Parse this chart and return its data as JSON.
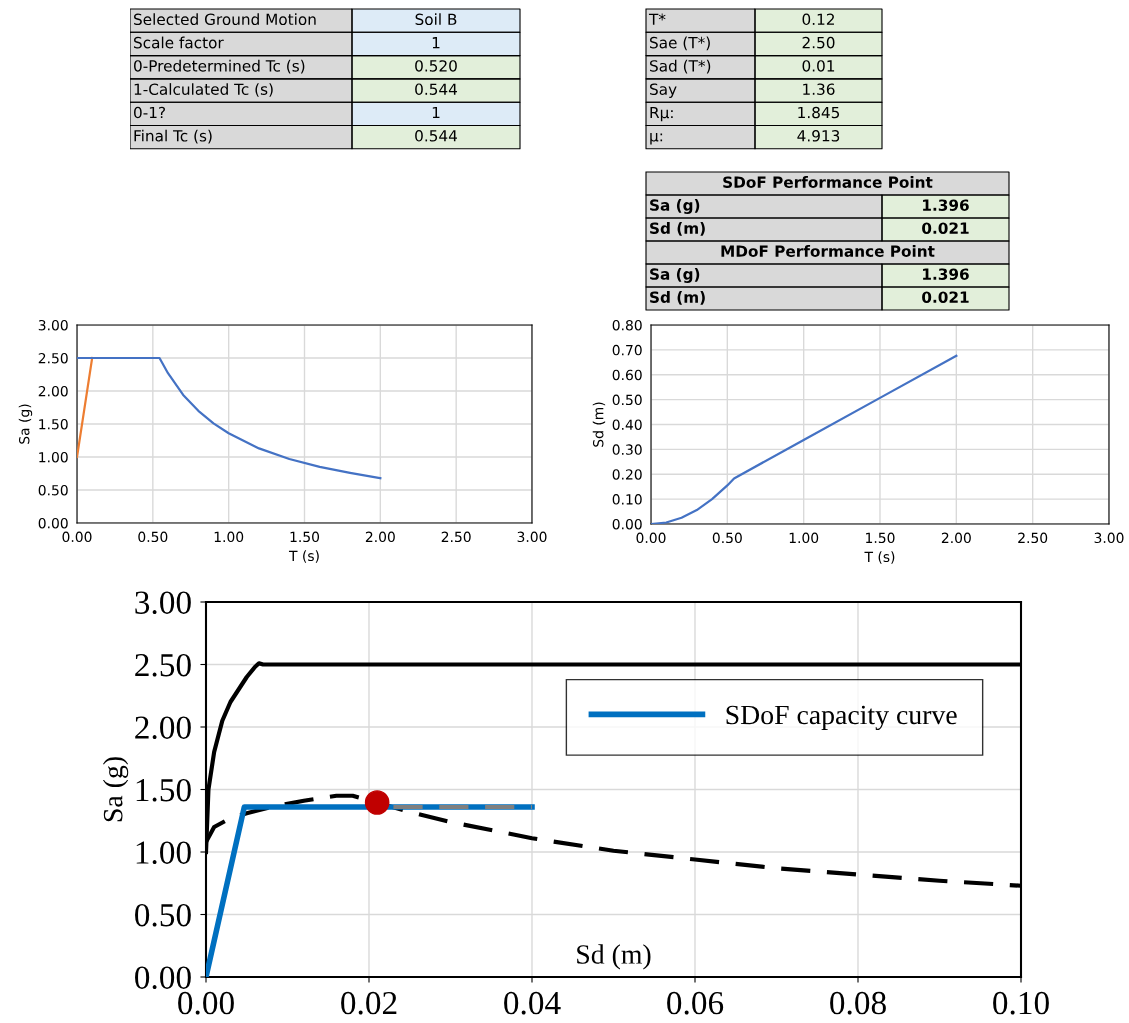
{
  "chart_data": [
    {
      "type": "other",
      "annotations": [
        "Selected Ground Motion",
        "Soil B",
        "Scale factor",
        "1",
        "0-Predetermined Tc (s)",
        "0.520",
        "1-Calculated Tc (s)",
        "0.544",
        "0-1?",
        "1",
        "Final Tc (s)",
        "0.544",
        "T*",
        "0.12",
        "Sae (T*)",
        "2.50",
        "Sad (T*)",
        "0.01",
        "Say",
        "1.36",
        "Rμ:",
        "1.845",
        "μ:",
        "4.913",
        "SDoF Performance Point",
        "Sa (g)",
        "1.396",
        "Sd (m)",
        "0.021",
        "MDoF Performance Point",
        "Sa (g)",
        "1.396",
        "Sd (m)",
        "0.021"
      ],
      "colors": [
        "#d9d9d9",
        "#ddebf7",
        "#d9d9d9",
        "#ddebf7",
        "#d9d9d9",
        "#e2efda",
        "#d9d9d9",
        "#e2efda",
        "#d9d9d9",
        "#ddebf7",
        "#d9d9d9",
        "#e2efda",
        "#d9d9d9",
        "#e2efda",
        "#d9d9d9",
        "#e2efda",
        "#d9d9d9",
        "#e2efda",
        "#d9d9d9",
        "#e2efda",
        "#d9d9d9",
        "#e2efda",
        "#d9d9d9",
        "#e2efda",
        "#d9d9d9",
        "#d9d9d9",
        "#e2efda",
        "#d9d9d9",
        "#e2efda",
        "#d9d9d9",
        "#d9d9d9",
        "#e2efda",
        "#d9d9d9",
        "#e2efda"
      ]
    },
    {
      "type": "line",
      "xlabel": "T (s)",
      "ylabel": "Sa (g)",
      "xlim": [
        0,
        3
      ],
      "ylim": [
        0,
        3
      ],
      "xticks": [
        {
          "value": 0,
          "label": "0.00"
        },
        {
          "value": 0.5,
          "label": "0.50"
        },
        {
          "value": 1,
          "label": "1.00"
        },
        {
          "value": 1.5,
          "label": "1.50"
        },
        {
          "value": 2,
          "label": "2.00"
        },
        {
          "value": 2.5,
          "label": "2.50"
        },
        {
          "value": 3,
          "label": "3.00"
        }
      ],
      "yticks": [
        {
          "value": 0,
          "label": "0.00"
        },
        {
          "value": 0.5,
          "label": "0.50"
        },
        {
          "value": 1,
          "label": "1.00"
        },
        {
          "value": 1.5,
          "label": "1.50"
        },
        {
          "value": 2,
          "label": "2.00"
        },
        {
          "value": 2.5,
          "label": "2.50"
        },
        {
          "value": 3,
          "label": "3.00"
        }
      ],
      "grid": true,
      "legend": false,
      "series": [
        {
          "color": "#ed7d31",
          "x": [
            0,
            0.1
          ],
          "values": [
            1.0,
            2.5
          ]
        },
        {
          "color": "#4472c4",
          "x": [
            0,
            0.544,
            0.6,
            0.7,
            0.8,
            0.9,
            1.0,
            1.2,
            1.4,
            1.6,
            1.8,
            2.0
          ],
          "values": [
            2.5,
            2.5,
            2.27,
            1.94,
            1.7,
            1.51,
            1.36,
            1.13,
            0.97,
            0.85,
            0.76,
            0.68
          ]
        }
      ]
    },
    {
      "type": "line",
      "xlabel": "T (s)",
      "ylabel": "Sd (m)",
      "xlim": [
        0,
        3
      ],
      "ylim": [
        0,
        0.8
      ],
      "xticks": [
        {
          "value": 0,
          "label": "0.00"
        },
        {
          "value": 0.5,
          "label": "0.50"
        },
        {
          "value": 1,
          "label": "1.00"
        },
        {
          "value": 1.5,
          "label": "1.50"
        },
        {
          "value": 2,
          "label": "2.00"
        },
        {
          "value": 2.5,
          "label": "2.50"
        },
        {
          "value": 3,
          "label": "3.00"
        }
      ],
      "yticks": [
        {
          "value": 0,
          "label": "0.00"
        },
        {
          "value": 0.1,
          "label": "0.10"
        },
        {
          "value": 0.2,
          "label": "0.20"
        },
        {
          "value": 0.3,
          "label": "0.30"
        },
        {
          "value": 0.4,
          "label": "0.40"
        },
        {
          "value": 0.5,
          "label": "0.50"
        },
        {
          "value": 0.6,
          "label": "0.60"
        },
        {
          "value": 0.7,
          "label": "0.70"
        },
        {
          "value": 0.8,
          "label": "0.80"
        }
      ],
      "grid": true,
      "legend": false,
      "series": [
        {
          "color": "#4472c4",
          "x": [
            0,
            0.1,
            0.2,
            0.3,
            0.4,
            0.5,
            0.544,
            1.0,
            1.5,
            2.0
          ],
          "values": [
            0,
            0.006,
            0.025,
            0.056,
            0.1,
            0.155,
            0.183,
            0.338,
            0.507,
            0.676
          ]
        }
      ]
    },
    {
      "type": "line",
      "xlabel": "Sd (m)",
      "ylabel": "Sa (g)",
      "xlim": [
        0,
        0.1
      ],
      "ylim": [
        0,
        3
      ],
      "xticks": [
        {
          "value": 0,
          "label": "0.00"
        },
        {
          "value": 0.02,
          "label": "0.02"
        },
        {
          "value": 0.04,
          "label": "0.04"
        },
        {
          "value": 0.06,
          "label": "0.06"
        },
        {
          "value": 0.08,
          "label": "0.08"
        },
        {
          "value": 0.1,
          "label": "0.10"
        }
      ],
      "yticks": [
        {
          "value": 0,
          "label": "0.00"
        },
        {
          "value": 0.5,
          "label": "0.50"
        },
        {
          "value": 1,
          "label": "1.00"
        },
        {
          "value": 1.5,
          "label": "1.50"
        },
        {
          "value": 2,
          "label": "2.00"
        },
        {
          "value": 2.5,
          "label": "2.50"
        },
        {
          "value": 3,
          "label": "3.00"
        }
      ],
      "grid": true,
      "legend": "top right",
      "series": [
        {
          "color": "#000000",
          "line_style": "solid",
          "x": [
            0,
            0.0003,
            0.001,
            0.002,
            0.003,
            0.004,
            0.005,
            0.006,
            0.0065,
            0.007,
            0.1
          ],
          "values": [
            1.0,
            1.5,
            1.8,
            2.05,
            2.2,
            2.3,
            2.4,
            2.48,
            2.51,
            2.5,
            2.5
          ]
        },
        {
          "color": "#000000",
          "line_style": "dashed",
          "x": [
            0,
            0.001,
            0.003,
            0.005,
            0.008,
            0.012,
            0.016,
            0.018,
            0.025,
            0.03,
            0.04,
            0.05,
            0.06,
            0.07,
            0.08,
            0.09,
            0.1
          ],
          "values": [
            1.08,
            1.2,
            1.27,
            1.31,
            1.36,
            1.41,
            1.45,
            1.45,
            1.32,
            1.24,
            1.11,
            1.01,
            0.94,
            0.87,
            0.82,
            0.77,
            0.73
          ]
        },
        {
          "name": "SDoF capacity curve",
          "color": "#0070c0",
          "line_style": "solid",
          "x": [
            0,
            0.0047,
            0.04
          ],
          "values": [
            0,
            1.36,
            1.36
          ]
        },
        {
          "color": "#7f7f7f",
          "line_style": "dashed",
          "x": [
            0.023,
            0.04
          ],
          "values": [
            1.36,
            1.36
          ]
        },
        {
          "type": "scatter",
          "marker": "circle",
          "color": "#c00000",
          "x": [
            0.021
          ],
          "values": [
            1.396
          ]
        }
      ]
    }
  ]
}
